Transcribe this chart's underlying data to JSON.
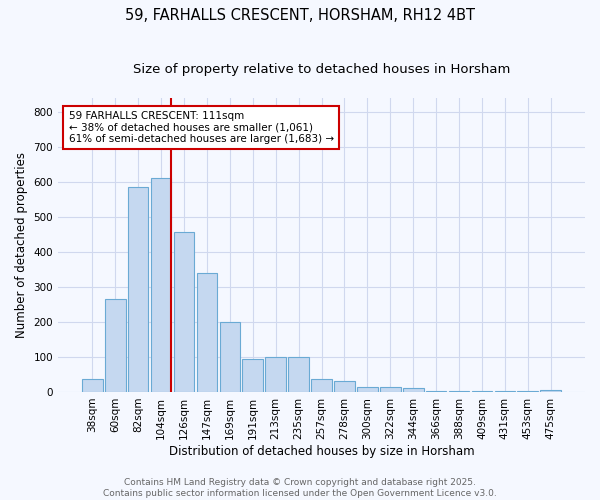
{
  "title": "59, FARHALLS CRESCENT, HORSHAM, RH12 4BT",
  "subtitle": "Size of property relative to detached houses in Horsham",
  "xlabel": "Distribution of detached houses by size in Horsham",
  "ylabel": "Number of detached properties",
  "categories": [
    "38sqm",
    "60sqm",
    "82sqm",
    "104sqm",
    "126sqm",
    "147sqm",
    "169sqm",
    "191sqm",
    "213sqm",
    "235sqm",
    "257sqm",
    "278sqm",
    "300sqm",
    "322sqm",
    "344sqm",
    "366sqm",
    "388sqm",
    "409sqm",
    "431sqm",
    "453sqm",
    "475sqm"
  ],
  "values": [
    37,
    265,
    585,
    610,
    455,
    340,
    200,
    93,
    100,
    100,
    37,
    32,
    14,
    15,
    10,
    4,
    3,
    4,
    2,
    2,
    7
  ],
  "bar_color": "#c5d8f0",
  "bar_edge_color": "#6aaad4",
  "background_color": "#f5f8ff",
  "grid_color": "#d0d8ee",
  "annotation_text": "59 FARHALLS CRESCENT: 111sqm\n← 38% of detached houses are smaller (1,061)\n61% of semi-detached houses are larger (1,683) →",
  "annotation_box_facecolor": "#ffffff",
  "annotation_box_edge": "#cc0000",
  "vline_color": "#cc0000",
  "vline_x_index": 3,
  "ylim": [
    0,
    840
  ],
  "yticks": [
    0,
    100,
    200,
    300,
    400,
    500,
    600,
    700,
    800
  ],
  "footer_text": "Contains HM Land Registry data © Crown copyright and database right 2025.\nContains public sector information licensed under the Open Government Licence v3.0.",
  "title_fontsize": 10.5,
  "subtitle_fontsize": 9.5,
  "axis_label_fontsize": 8.5,
  "tick_fontsize": 7.5,
  "footer_fontsize": 6.5,
  "annotation_fontsize": 7.5
}
